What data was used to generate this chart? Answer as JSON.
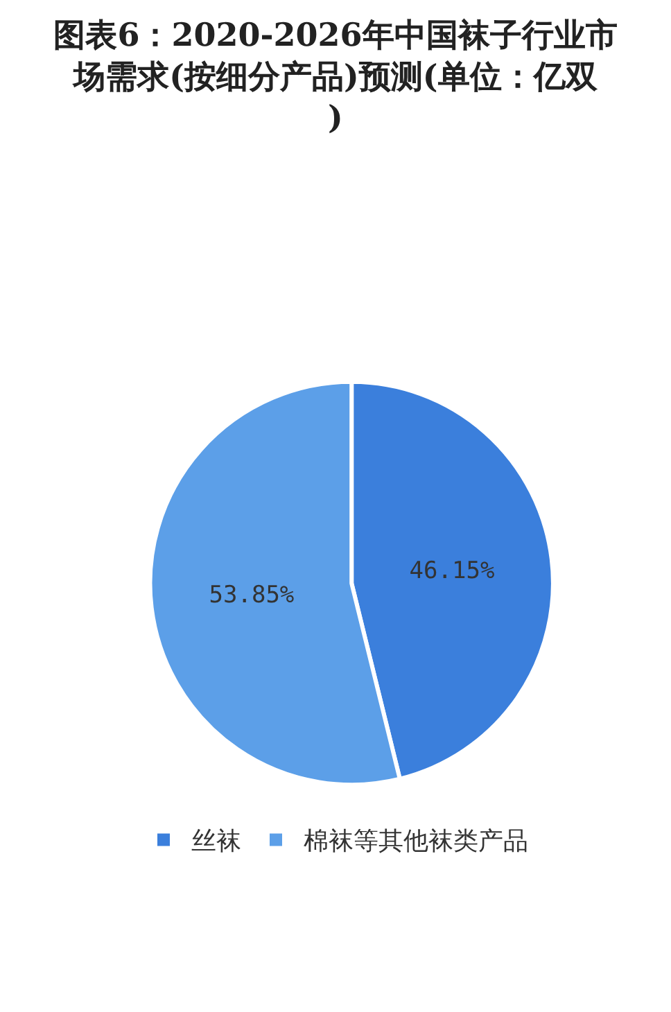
{
  "chart_data": {
    "type": "pie",
    "title": "图表6：2020-2026年中国袜子行业市场需求(按细分产品)预测(单位：亿双)",
    "categories": [
      "丝袜",
      "棉袜等其他袜类产品"
    ],
    "values": [
      46.15,
      53.85
    ],
    "value_labels": [
      "46.15%",
      "53.85%"
    ],
    "colors": [
      "#3b7fdc",
      "#5c9fe8"
    ],
    "legend": "bottom"
  }
}
